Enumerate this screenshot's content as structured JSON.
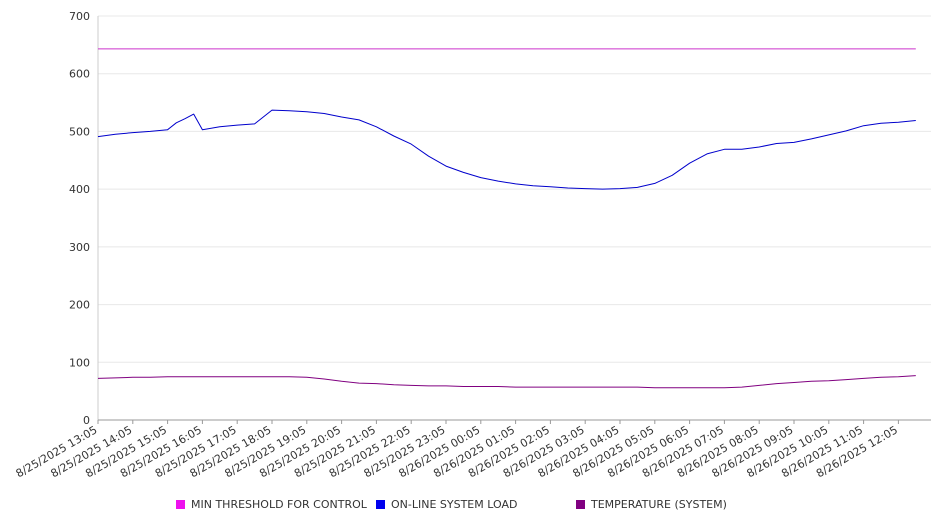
{
  "chart_data": {
    "type": "line",
    "title": "",
    "xlabel": "",
    "ylabel": "",
    "ylim": [
      0,
      700
    ],
    "y_ticks": [
      0,
      100,
      200,
      300,
      400,
      500,
      600,
      700
    ],
    "x_tick_labels": [
      "8/25/2025 13:05",
      "8/25/2025 14:05",
      "8/25/2025 15:05",
      "8/25/2025 16:05",
      "8/25/2025 17:05",
      "8/25/2025 18:05",
      "8/25/2025 19:05",
      "8/25/2025 20:05",
      "8/25/2025 21:05",
      "8/25/2025 22:05",
      "8/25/2025 23:05",
      "8/26/2025 00:05",
      "8/26/2025 01:05",
      "8/26/2025 02:05",
      "8/26/2025 03:05",
      "8/26/2025 04:05",
      "8/26/2025 05:05",
      "8/26/2025 06:05",
      "8/26/2025 07:05",
      "8/26/2025 08:05",
      "8/26/2025 09:05",
      "8/26/2025 10:05",
      "8/26/2025 11:05",
      "8/26/2025 12:05"
    ],
    "x": [
      "8/25/2025 13:05",
      "8/25/2025 13:35",
      "8/25/2025 14:05",
      "8/25/2025 14:35",
      "8/25/2025 15:05",
      "8/25/2025 15:20",
      "8/25/2025 15:35",
      "8/25/2025 15:50",
      "8/25/2025 16:05",
      "8/25/2025 16:35",
      "8/25/2025 17:05",
      "8/25/2025 17:35",
      "8/25/2025 18:05",
      "8/25/2025 18:35",
      "8/25/2025 19:05",
      "8/25/2025 19:35",
      "8/25/2025 20:05",
      "8/25/2025 20:35",
      "8/25/2025 21:05",
      "8/25/2025 21:35",
      "8/25/2025 22:05",
      "8/25/2025 22:35",
      "8/25/2025 23:05",
      "8/25/2025 23:35",
      "8/26/2025 00:05",
      "8/26/2025 00:35",
      "8/26/2025 01:05",
      "8/26/2025 01:35",
      "8/26/2025 02:05",
      "8/26/2025 02:35",
      "8/26/2025 03:05",
      "8/26/2025 03:35",
      "8/26/2025 04:05",
      "8/26/2025 04:35",
      "8/26/2025 05:05",
      "8/26/2025 05:35",
      "8/26/2025 06:05",
      "8/26/2025 06:35",
      "8/26/2025 07:05",
      "8/26/2025 07:35",
      "8/26/2025 08:05",
      "8/26/2025 08:35",
      "8/26/2025 09:05",
      "8/26/2025 09:35",
      "8/26/2025 10:05",
      "8/26/2025 10:35",
      "8/26/2025 11:05",
      "8/26/2025 11:35",
      "8/26/2025 12:05",
      "8/26/2025 12:35"
    ],
    "series": [
      {
        "name": "MIN THRESHOLD FOR CONTROL",
        "color": "#cc33cc",
        "values": [
          643,
          643,
          643,
          643,
          643,
          643,
          643,
          643,
          643,
          643,
          643,
          643,
          643,
          643,
          643,
          643,
          643,
          643,
          643,
          643,
          643,
          643,
          643,
          643,
          643,
          643,
          643,
          643,
          643,
          643,
          643,
          643,
          643,
          643,
          643,
          643,
          643,
          643,
          643,
          643,
          643,
          643,
          643,
          643,
          643,
          643,
          643,
          643,
          643,
          643
        ]
      },
      {
        "name": "ON-LINE SYSTEM LOAD",
        "color": "#0000cc",
        "values": [
          491,
          495,
          498,
          500,
          503,
          515,
          522,
          530,
          503,
          508,
          511,
          513,
          537,
          536,
          534,
          531,
          525,
          520,
          508,
          492,
          478,
          457,
          440,
          429,
          420,
          414,
          409,
          406,
          404,
          402,
          401,
          400,
          401,
          403,
          410,
          424,
          445,
          461,
          469,
          469,
          473,
          479,
          481,
          487,
          494,
          501,
          510,
          514,
          516,
          519
        ]
      },
      {
        "name": "TEMPERATURE (SYSTEM)",
        "color": "#800080",
        "values": [
          72,
          73,
          74,
          74,
          75,
          75,
          75,
          75,
          75,
          75,
          75,
          75,
          75,
          75,
          74,
          71,
          67,
          64,
          63,
          61,
          60,
          59,
          59,
          58,
          58,
          58,
          57,
          57,
          57,
          57,
          57,
          57,
          57,
          57,
          56,
          56,
          56,
          56,
          56,
          57,
          60,
          63,
          65,
          67,
          68,
          70,
          72,
          74,
          75,
          77
        ]
      }
    ],
    "grid": true,
    "legend_position": "bottom"
  }
}
